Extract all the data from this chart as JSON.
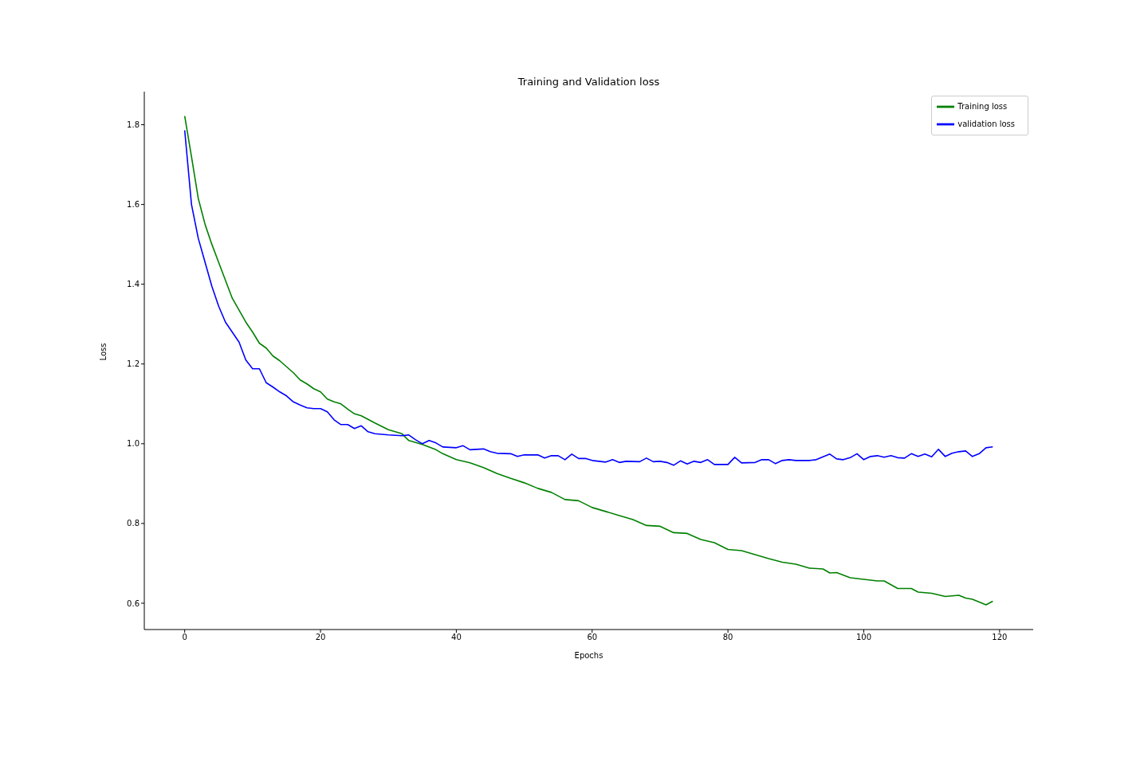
{
  "chart_data": {
    "type": "line",
    "title": "Training and Validation loss",
    "xlabel": "Epochs",
    "ylabel": "Loss",
    "xlim": [
      -5.95,
      124.95
    ],
    "ylim": [
      0.534,
      1.883
    ],
    "xticks": [
      0,
      20,
      40,
      60,
      80,
      100,
      120
    ],
    "yticks": [
      {
        "value": 0.6,
        "label": "0.6"
      },
      {
        "value": 0.8,
        "label": "0.8"
      },
      {
        "value": 1.0,
        "label": "1.0"
      },
      {
        "value": 1.2,
        "label": "1.2"
      },
      {
        "value": 1.4,
        "label": "1.4"
      },
      {
        "value": 1.6,
        "label": "1.6"
      },
      {
        "value": 1.8,
        "label": "1.8"
      }
    ],
    "legend": "top right",
    "series": [
      {
        "name": "Training loss",
        "color": "#008000",
        "x": [
          0,
          1,
          2,
          3,
          4,
          5,
          6,
          7,
          8,
          9,
          10,
          11,
          12,
          13,
          14,
          15,
          16,
          17,
          18,
          19,
          20,
          21,
          22,
          23,
          24,
          25,
          26,
          28,
          30,
          32,
          33,
          35,
          37,
          38,
          40,
          42,
          44,
          46,
          48,
          50,
          52,
          54,
          56,
          58,
          60,
          62,
          64,
          66,
          68,
          70,
          72,
          74,
          76,
          78,
          80,
          82,
          84,
          86,
          88,
          90,
          92,
          94,
          95,
          96,
          98,
          100,
          102,
          103,
          105,
          107,
          108,
          110,
          112,
          114,
          115,
          116,
          118,
          119
        ],
        "values": [
          1.822,
          1.72,
          1.615,
          1.55,
          1.5,
          1.455,
          1.41,
          1.365,
          1.335,
          1.305,
          1.28,
          1.252,
          1.24,
          1.22,
          1.208,
          1.193,
          1.178,
          1.16,
          1.15,
          1.138,
          1.13,
          1.112,
          1.105,
          1.1,
          1.087,
          1.075,
          1.07,
          1.052,
          1.035,
          1.025,
          1.008,
          0.998,
          0.985,
          0.975,
          0.96,
          0.952,
          0.94,
          0.925,
          0.913,
          0.902,
          0.888,
          0.878,
          0.86,
          0.857,
          0.84,
          0.83,
          0.82,
          0.81,
          0.795,
          0.793,
          0.777,
          0.775,
          0.76,
          0.752,
          0.735,
          0.732,
          0.722,
          0.712,
          0.703,
          0.698,
          0.688,
          0.686,
          0.676,
          0.677,
          0.664,
          0.66,
          0.656,
          0.656,
          0.637,
          0.637,
          0.628,
          0.625,
          0.617,
          0.62,
          0.613,
          0.61,
          0.596,
          0.605
        ]
      },
      {
        "name": "validation loss",
        "color": "#0000ff",
        "x": [
          0,
          1,
          2,
          3,
          4,
          5,
          6,
          7,
          8,
          9,
          10,
          11,
          12,
          13,
          14,
          15,
          16,
          17,
          18,
          19,
          20,
          21,
          22,
          23,
          24,
          25,
          26,
          27,
          28,
          30,
          32,
          33,
          34,
          35,
          36,
          37,
          38,
          40,
          41,
          42,
          44,
          45,
          46,
          48,
          49,
          50,
          52,
          53,
          54,
          55,
          56,
          57,
          58,
          59,
          60,
          62,
          63,
          64,
          65,
          67,
          68,
          69,
          70,
          71,
          72,
          73,
          74,
          75,
          76,
          77,
          78,
          80,
          81,
          82,
          84,
          85,
          86,
          87,
          88,
          89,
          90,
          92,
          93,
          95,
          96,
          97,
          98,
          99,
          100,
          101,
          102,
          103,
          104,
          105,
          106,
          107,
          108,
          109,
          110,
          111,
          112,
          113,
          114,
          115,
          116,
          117,
          118,
          119
        ],
        "values": [
          1.786,
          1.6,
          1.515,
          1.455,
          1.395,
          1.345,
          1.305,
          1.28,
          1.255,
          1.21,
          1.188,
          1.188,
          1.153,
          1.142,
          1.13,
          1.12,
          1.105,
          1.097,
          1.09,
          1.088,
          1.088,
          1.08,
          1.06,
          1.048,
          1.048,
          1.038,
          1.045,
          1.03,
          1.025,
          1.022,
          1.02,
          1.022,
          1.01,
          1.0,
          1.008,
          1.002,
          0.992,
          0.99,
          0.995,
          0.985,
          0.987,
          0.98,
          0.976,
          0.975,
          0.968,
          0.972,
          0.972,
          0.964,
          0.97,
          0.97,
          0.96,
          0.974,
          0.963,
          0.963,
          0.958,
          0.954,
          0.96,
          0.953,
          0.956,
          0.955,
          0.964,
          0.955,
          0.956,
          0.953,
          0.946,
          0.957,
          0.949,
          0.956,
          0.953,
          0.96,
          0.948,
          0.948,
          0.966,
          0.952,
          0.953,
          0.96,
          0.96,
          0.95,
          0.958,
          0.96,
          0.958,
          0.958,
          0.96,
          0.974,
          0.962,
          0.96,
          0.965,
          0.975,
          0.96,
          0.968,
          0.97,
          0.966,
          0.97,
          0.965,
          0.964,
          0.975,
          0.968,
          0.974,
          0.967,
          0.986,
          0.968,
          0.976,
          0.98,
          0.982,
          0.968,
          0.975,
          0.99,
          0.992
        ]
      }
    ]
  }
}
